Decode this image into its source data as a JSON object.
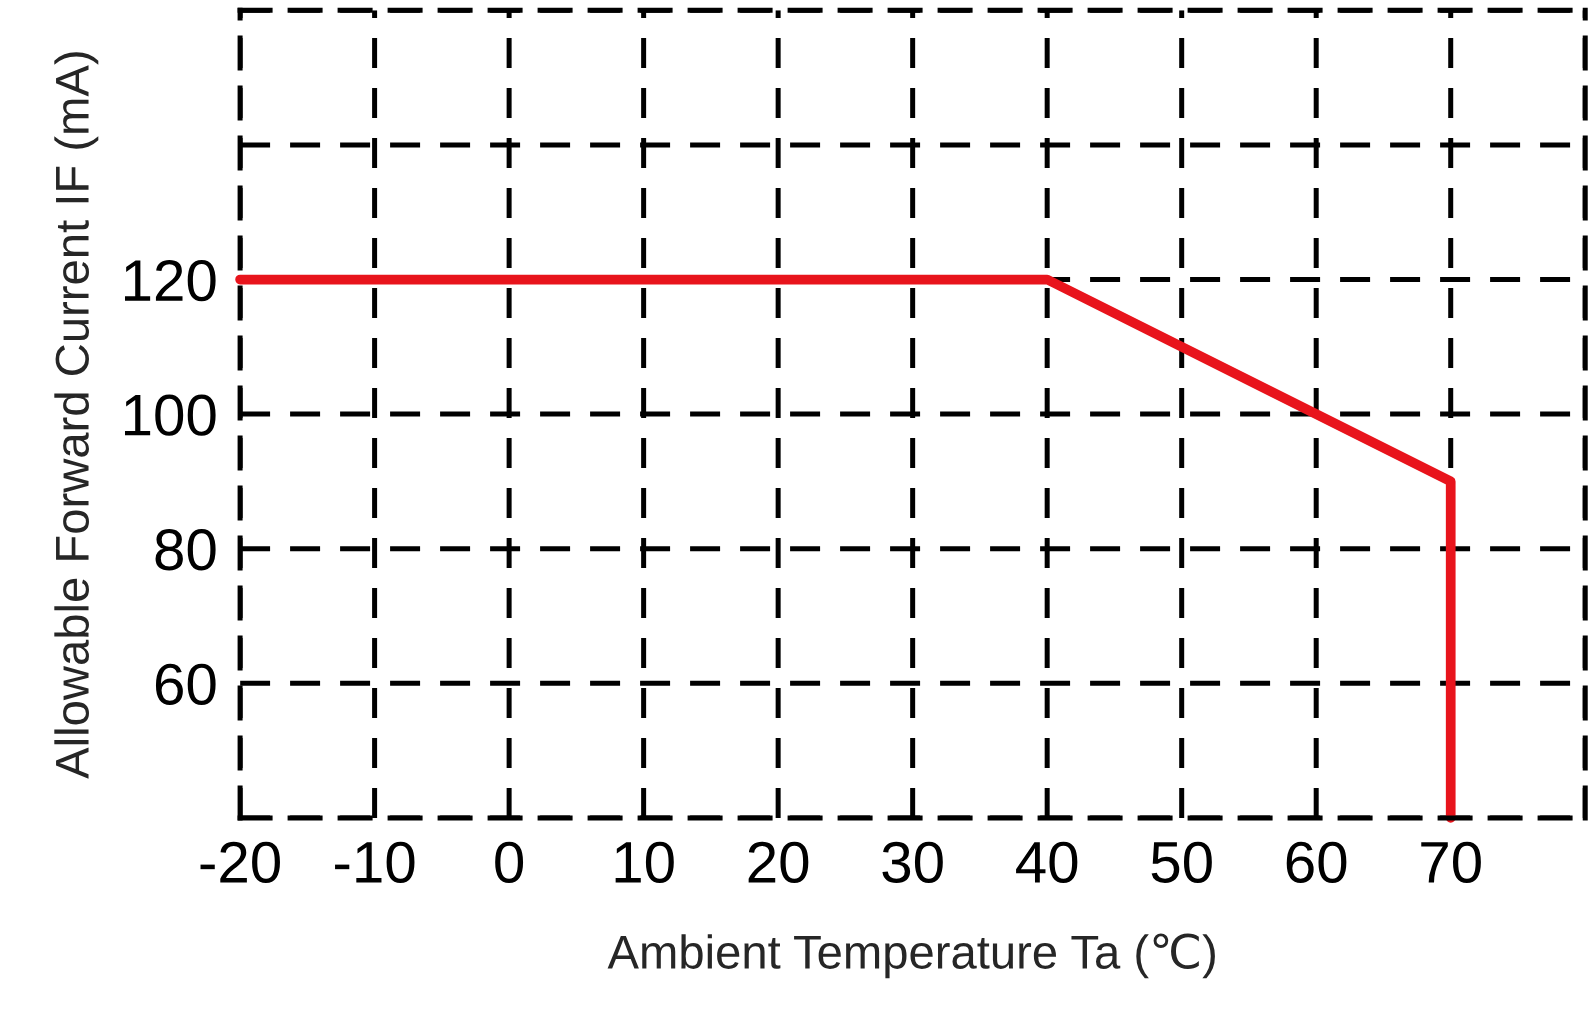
{
  "chart_data": {
    "type": "line",
    "xlabel": "Ambient Temperature Ta (℃)",
    "ylabel": "Allowable Forward Current IF (mA)",
    "x": [
      -20,
      40,
      70,
      70
    ],
    "series": [
      {
        "color": "#e8141c",
        "values": [
          120,
          120,
          90,
          40
        ]
      }
    ],
    "xlim": [
      -20,
      80
    ],
    "xticks": [
      -20,
      -10,
      0,
      10,
      20,
      30,
      40,
      50,
      60,
      70,
      {
        "value": 80,
        "label": null
      }
    ],
    "ylim": [
      40,
      160
    ],
    "yticks": [
      {
        "value": 40,
        "label": null
      },
      60,
      80,
      100,
      120,
      {
        "value": 140,
        "label": null
      },
      {
        "value": 160,
        "label": null
      }
    ],
    "grid": true,
    "line_style": "solid",
    "marker": "none"
  }
}
